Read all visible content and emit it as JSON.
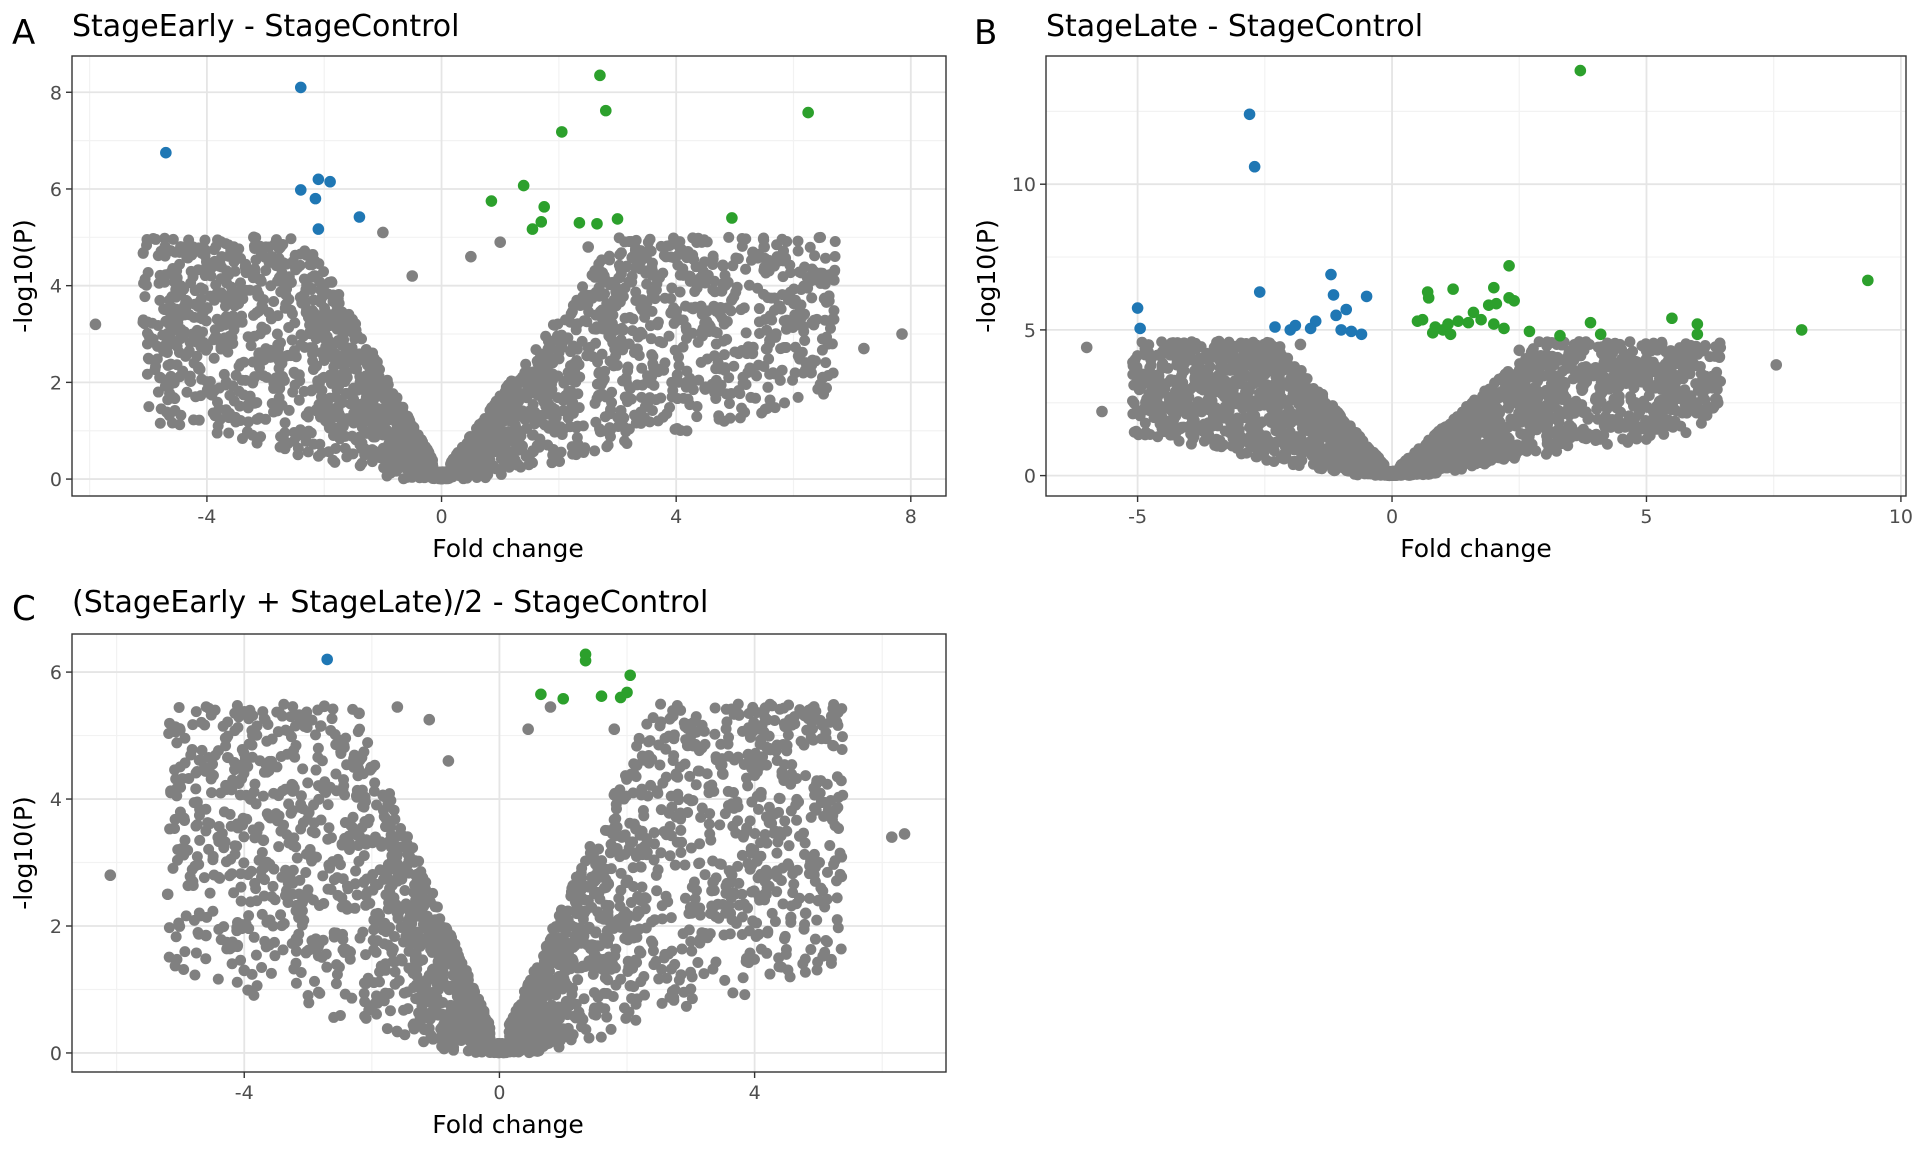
{
  "figure": {
    "colors": {
      "down": "#1f77b4",
      "up": "#2ca02c",
      "ns": "#808080",
      "grid_major": "#e5e5e5",
      "grid_minor": "#f2f2f2",
      "frame": "#333333"
    }
  },
  "chart_data": [
    {
      "type": "scatter",
      "panel": "A",
      "title": "StageEarly - StageControl",
      "xlabel": "Fold change",
      "ylabel": "-log10(P)",
      "xlim": [
        -6.3,
        8.6
      ],
      "ylim": [
        -0.35,
        8.75
      ],
      "xticks": [
        -4,
        0,
        4,
        8
      ],
      "xtick_labels": [
        "-4",
        "0",
        "4",
        "8"
      ],
      "yticks": [
        0,
        2,
        4,
        6,
        8
      ],
      "ytick_labels": [
        "0",
        "2",
        "4",
        "6",
        "8"
      ],
      "grid": true,
      "legend": "none",
      "background_cloud": {
        "color": "#808080",
        "x_extent": [
          -6.0,
          7.9
        ],
        "y_extent": [
          0,
          5.0
        ],
        "note": "dense non-significant points"
      },
      "series": [
        {
          "group": "down",
          "color": "#1f77b4",
          "points": [
            [
              -4.7,
              6.75
            ],
            [
              -2.4,
              8.1
            ],
            [
              -2.4,
              5.98
            ],
            [
              -2.1,
              6.2
            ],
            [
              -1.9,
              6.15
            ],
            [
              -2.15,
              5.8
            ],
            [
              -2.1,
              5.17
            ],
            [
              -1.4,
              5.42
            ]
          ]
        },
        {
          "group": "up",
          "color": "#2ca02c",
          "points": [
            [
              2.7,
              8.35
            ],
            [
              2.8,
              7.62
            ],
            [
              2.05,
              7.18
            ],
            [
              6.25,
              7.58
            ],
            [
              0.85,
              5.75
            ],
            [
              1.4,
              6.07
            ],
            [
              1.75,
              5.63
            ],
            [
              1.7,
              5.32
            ],
            [
              1.55,
              5.17
            ],
            [
              2.35,
              5.3
            ],
            [
              2.65,
              5.28
            ],
            [
              3.0,
              5.38
            ],
            [
              4.95,
              5.4
            ]
          ]
        },
        {
          "group": "ns",
          "color": "#808080",
          "points": [
            [
              -5.9,
              3.2
            ],
            [
              -4.8,
              2.1
            ],
            [
              -4.0,
              4.4
            ],
            [
              -3.2,
              5.0
            ],
            [
              -2.9,
              4.6
            ],
            [
              -1.0,
              5.1
            ],
            [
              -0.5,
              4.2
            ],
            [
              0.5,
              4.6
            ],
            [
              1.0,
              4.9
            ],
            [
              2.5,
              4.8
            ],
            [
              3.3,
              4.6
            ],
            [
              4.2,
              4.7
            ],
            [
              5.5,
              4.8
            ],
            [
              5.3,
              2.6
            ],
            [
              5.7,
              3.0
            ],
            [
              6.3,
              2.2
            ],
            [
              7.2,
              2.7
            ],
            [
              7.85,
              3.0
            ],
            [
              6.5,
              2.1
            ],
            [
              4.5,
              1.9
            ]
          ]
        }
      ]
    },
    {
      "type": "scatter",
      "panel": "B",
      "title": "StageLate - StageControl",
      "xlabel": "Fold change",
      "ylabel": "-log10(P)",
      "xlim": [
        -6.8,
        10.1
      ],
      "ylim": [
        -0.7,
        14.4
      ],
      "xticks": [
        -5,
        0,
        5,
        10
      ],
      "xtick_labels": [
        "-5",
        "0",
        "5",
        "10"
      ],
      "yticks": [
        0,
        5,
        10
      ],
      "ytick_labels": [
        "0",
        "5",
        "10"
      ],
      "grid": true,
      "legend": "none",
      "background_cloud": {
        "color": "#808080",
        "x_extent": [
          -6.0,
          7.6
        ],
        "y_extent": [
          0,
          4.6
        ],
        "note": "dense non-significant points"
      },
      "series": [
        {
          "group": "down",
          "color": "#1f77b4",
          "points": [
            [
              -2.8,
              12.4
            ],
            [
              -2.7,
              10.6
            ],
            [
              -5.0,
              5.75
            ],
            [
              -4.95,
              5.05
            ],
            [
              -2.6,
              6.3
            ],
            [
              -1.2,
              6.9
            ],
            [
              -1.15,
              6.2
            ],
            [
              -0.5,
              6.15
            ],
            [
              -1.5,
              5.3
            ],
            [
              -1.1,
              5.5
            ],
            [
              -0.9,
              5.7
            ],
            [
              -2.3,
              5.1
            ],
            [
              -2.0,
              5.0
            ],
            [
              -1.9,
              5.15
            ],
            [
              -1.6,
              5.05
            ],
            [
              -1.0,
              5.0
            ],
            [
              -0.8,
              4.95
            ],
            [
              -0.6,
              4.85
            ]
          ]
        },
        {
          "group": "up",
          "color": "#2ca02c",
          "points": [
            [
              3.7,
              13.9
            ],
            [
              9.35,
              6.7
            ],
            [
              2.3,
              7.2
            ],
            [
              0.7,
              6.3
            ],
            [
              0.72,
              6.1
            ],
            [
              1.2,
              6.4
            ],
            [
              2.0,
              6.45
            ],
            [
              2.3,
              6.1
            ],
            [
              2.4,
              6.0
            ],
            [
              1.6,
              5.6
            ],
            [
              1.9,
              5.85
            ],
            [
              2.05,
              5.9
            ],
            [
              0.5,
              5.3
            ],
            [
              0.6,
              5.35
            ],
            [
              0.85,
              5.1
            ],
            [
              1.0,
              5.0
            ],
            [
              1.1,
              5.2
            ],
            [
              1.3,
              5.3
            ],
            [
              1.5,
              5.25
            ],
            [
              1.75,
              5.35
            ],
            [
              2.0,
              5.2
            ],
            [
              2.2,
              5.05
            ],
            [
              2.7,
              4.95
            ],
            [
              3.3,
              4.8
            ],
            [
              3.9,
              5.25
            ],
            [
              4.1,
              4.85
            ],
            [
              5.5,
              5.4
            ],
            [
              6.0,
              5.2
            ],
            [
              6.0,
              4.85
            ],
            [
              8.05,
              5.0
            ],
            [
              0.8,
              4.9
            ],
            [
              1.15,
              4.85
            ]
          ]
        },
        {
          "group": "ns",
          "color": "#808080",
          "points": [
            [
              -6.0,
              4.4
            ],
            [
              -5.7,
              2.2
            ],
            [
              -5.0,
              3.5
            ],
            [
              -4.0,
              2.7
            ],
            [
              -3.4,
              4.6
            ],
            [
              -3.0,
              3.2
            ],
            [
              -1.8,
              4.5
            ],
            [
              2.5,
              4.3
            ],
            [
              4.0,
              3.7
            ],
            [
              5.0,
              4.0
            ],
            [
              5.3,
              3.2
            ],
            [
              5.5,
              3.0
            ],
            [
              6.2,
              3.0
            ],
            [
              6.4,
              2.5
            ],
            [
              6.3,
              3.4
            ],
            [
              7.55,
              3.8
            ],
            [
              5.2,
              1.6
            ]
          ]
        }
      ]
    },
    {
      "type": "scatter",
      "panel": "C",
      "title": "(StageEarly + StageLate)/2 - StageControl",
      "xlabel": "Fold change",
      "ylabel": "-log10(P)",
      "xlim": [
        -6.7,
        7.0
      ],
      "ylim": [
        -0.3,
        6.6
      ],
      "xticks": [
        -4,
        0,
        4
      ],
      "xtick_labels": [
        "-4",
        "0",
        "4"
      ],
      "yticks": [
        0,
        2,
        4,
        6
      ],
      "ytick_labels": [
        "0",
        "2",
        "4",
        "6"
      ],
      "grid": true,
      "legend": "none",
      "background_cloud": {
        "color": "#808080",
        "x_extent": [
          -6.1,
          6.35
        ],
        "y_extent": [
          0,
          5.5
        ],
        "note": "dense non-significant points"
      },
      "series": [
        {
          "group": "down",
          "color": "#1f77b4",
          "points": [
            [
              -2.7,
              6.2
            ]
          ]
        },
        {
          "group": "up",
          "color": "#2ca02c",
          "points": [
            [
              1.35,
              6.28
            ],
            [
              1.35,
              6.18
            ],
            [
              2.05,
              5.95
            ],
            [
              0.65,
              5.65
            ],
            [
              1.0,
              5.58
            ],
            [
              1.6,
              5.62
            ],
            [
              1.9,
              5.6
            ],
            [
              2.0,
              5.68
            ]
          ]
        },
        {
          "group": "ns",
          "color": "#808080",
          "points": [
            [
              -6.1,
              2.8
            ],
            [
              -5.2,
              2.5
            ],
            [
              -4.2,
              4.15
            ],
            [
              -3.9,
              4.0
            ],
            [
              -4.1,
              3.55
            ],
            [
              -3.7,
              3.35
            ],
            [
              -2.8,
              5.15
            ],
            [
              -2.2,
              5.35
            ],
            [
              -1.6,
              5.45
            ],
            [
              -1.1,
              5.25
            ],
            [
              -0.8,
              4.6
            ],
            [
              0.45,
              5.1
            ],
            [
              0.8,
              5.45
            ],
            [
              1.8,
              5.1
            ],
            [
              3.5,
              4.4
            ],
            [
              3.9,
              4.7
            ],
            [
              4.1,
              4.1
            ],
            [
              5.05,
              3.95
            ],
            [
              6.15,
              3.4
            ],
            [
              6.35,
              3.45
            ],
            [
              -4.6,
              1.85
            ],
            [
              -4.0,
              1.3
            ],
            [
              4.8,
              2.2
            ],
            [
              5.0,
              2.4
            ]
          ]
        }
      ]
    }
  ]
}
